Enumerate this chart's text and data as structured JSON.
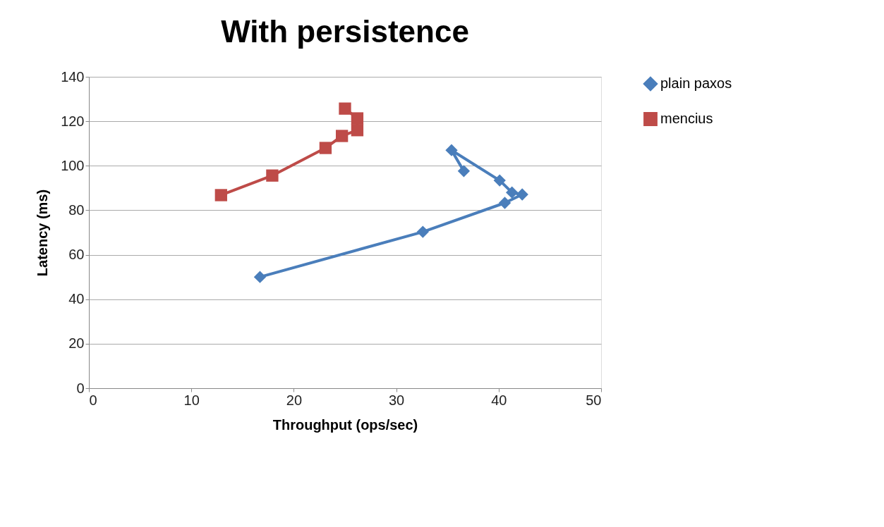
{
  "chart_data": {
    "type": "line",
    "title": "With persistence",
    "xlabel": "Throughput  (ops/sec)",
    "ylabel": "Latency (ms)",
    "xlim": [
      0,
      50
    ],
    "xticks": [
      0,
      10,
      20,
      30,
      40,
      50
    ],
    "ylim": [
      0,
      140
    ],
    "yticks": [
      0,
      20,
      40,
      60,
      80,
      100,
      120,
      140
    ],
    "grid": "y",
    "legend": "right",
    "series": [
      {
        "name": "plain paxos",
        "color": "#4a7ebb",
        "marker": "diamond",
        "x": [
          16.7,
          32.6,
          40.6,
          42.3,
          41.3,
          40.1,
          35.4,
          36.6
        ],
        "values": [
          50,
          70.3,
          83.3,
          87.1,
          88,
          93.4,
          107,
          97.6
        ]
      },
      {
        "name": "mencius",
        "color": "#be4b48",
        "marker": "square",
        "x": [
          12.9,
          17.9,
          23.1,
          24.7,
          26.2,
          26.2,
          25.0
        ],
        "values": [
          86.8,
          95.6,
          108,
          113.4,
          116,
          121.3,
          125.7
        ]
      }
    ]
  }
}
